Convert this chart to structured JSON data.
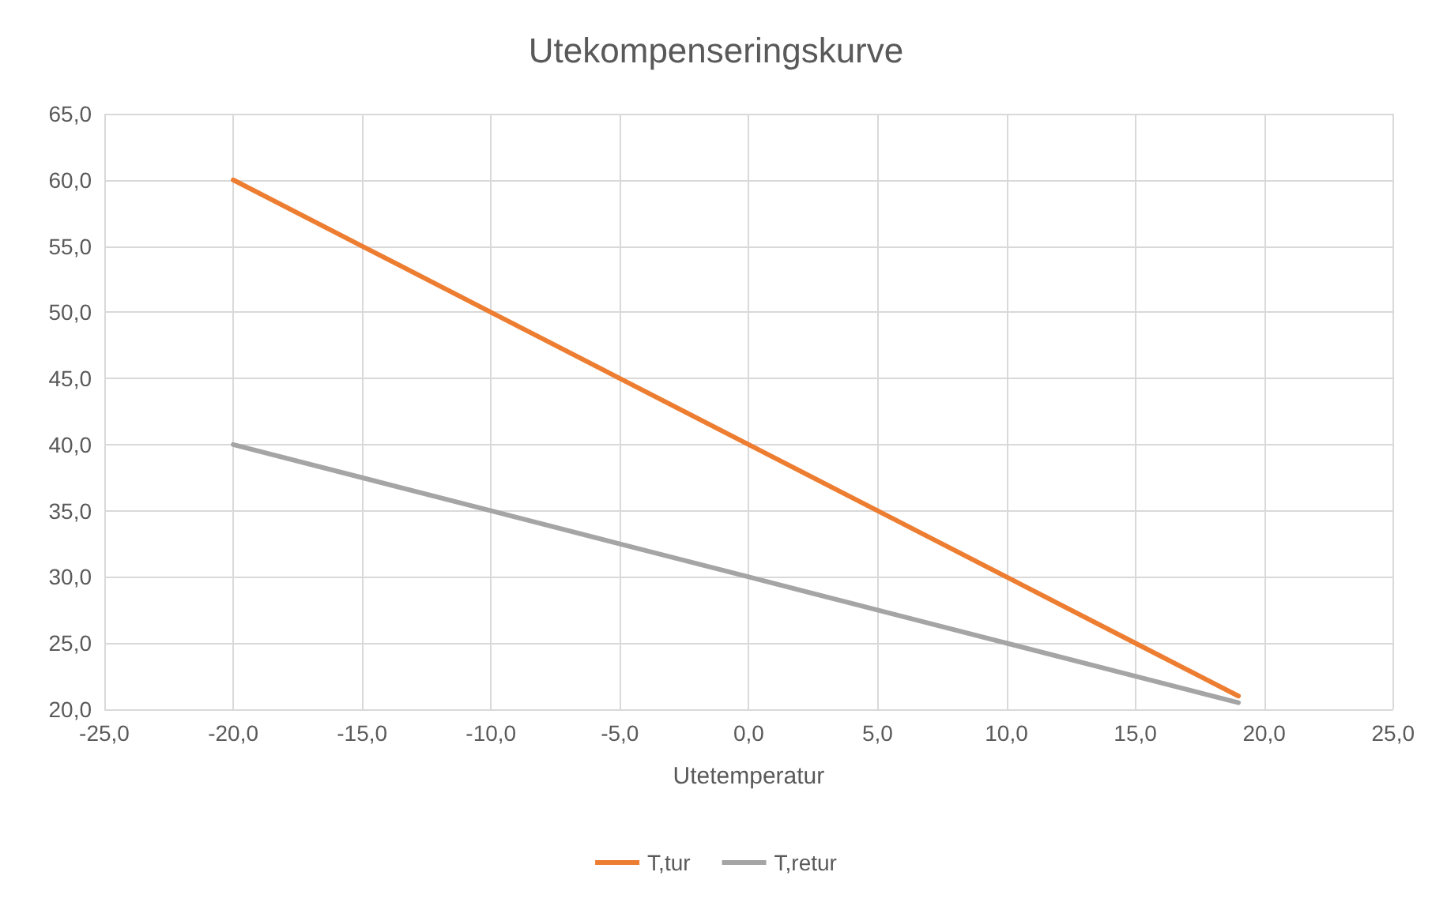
{
  "chart_data": {
    "type": "line",
    "title": "Utekompenseringskurve",
    "xlabel": "Utetemperatur",
    "series": [
      {
        "name": "T,tur",
        "color": "#ed7d31",
        "x": [
          -20,
          -15,
          -10,
          -5,
          0,
          5,
          10,
          15,
          19
        ],
        "values": [
          60,
          55,
          50,
          45,
          40,
          35,
          30,
          25,
          21
        ]
      },
      {
        "name": "T,retur",
        "color": "#a5a5a5",
        "x": [
          -20,
          -15,
          -10,
          -5,
          0,
          5,
          10,
          15,
          19
        ],
        "values": [
          40,
          37.5,
          35,
          32.5,
          30,
          27.5,
          25,
          22.5,
          20.5
        ]
      }
    ],
    "xlim": [
      -25,
      25
    ],
    "xticks": [
      {
        "value": -25,
        "label": "-25,0"
      },
      {
        "value": -20,
        "label": "-20,0"
      },
      {
        "value": -15,
        "label": "-15,0"
      },
      {
        "value": -10,
        "label": "-10,0"
      },
      {
        "value": -5,
        "label": "-5,0"
      },
      {
        "value": 0,
        "label": "0,0"
      },
      {
        "value": 5,
        "label": "5,0"
      },
      {
        "value": 10,
        "label": "10,0"
      },
      {
        "value": 15,
        "label": "15,0"
      },
      {
        "value": 20,
        "label": "20,0"
      },
      {
        "value": 25,
        "label": "25,0"
      }
    ],
    "ylim": [
      20,
      65
    ],
    "yticks": [
      {
        "value": 20,
        "label": "20,0"
      },
      {
        "value": 25,
        "label": "25,0"
      },
      {
        "value": 30,
        "label": "30,0"
      },
      {
        "value": 35,
        "label": "35,0"
      },
      {
        "value": 40,
        "label": "40,0"
      },
      {
        "value": 45,
        "label": "45,0"
      },
      {
        "value": 50,
        "label": "50,0"
      },
      {
        "value": 55,
        "label": "55,0"
      },
      {
        "value": 60,
        "label": "60,0"
      },
      {
        "value": 65,
        "label": "65,0"
      }
    ],
    "grid": true,
    "legend": "bottom",
    "marker": "none",
    "line_style": "solid"
  }
}
